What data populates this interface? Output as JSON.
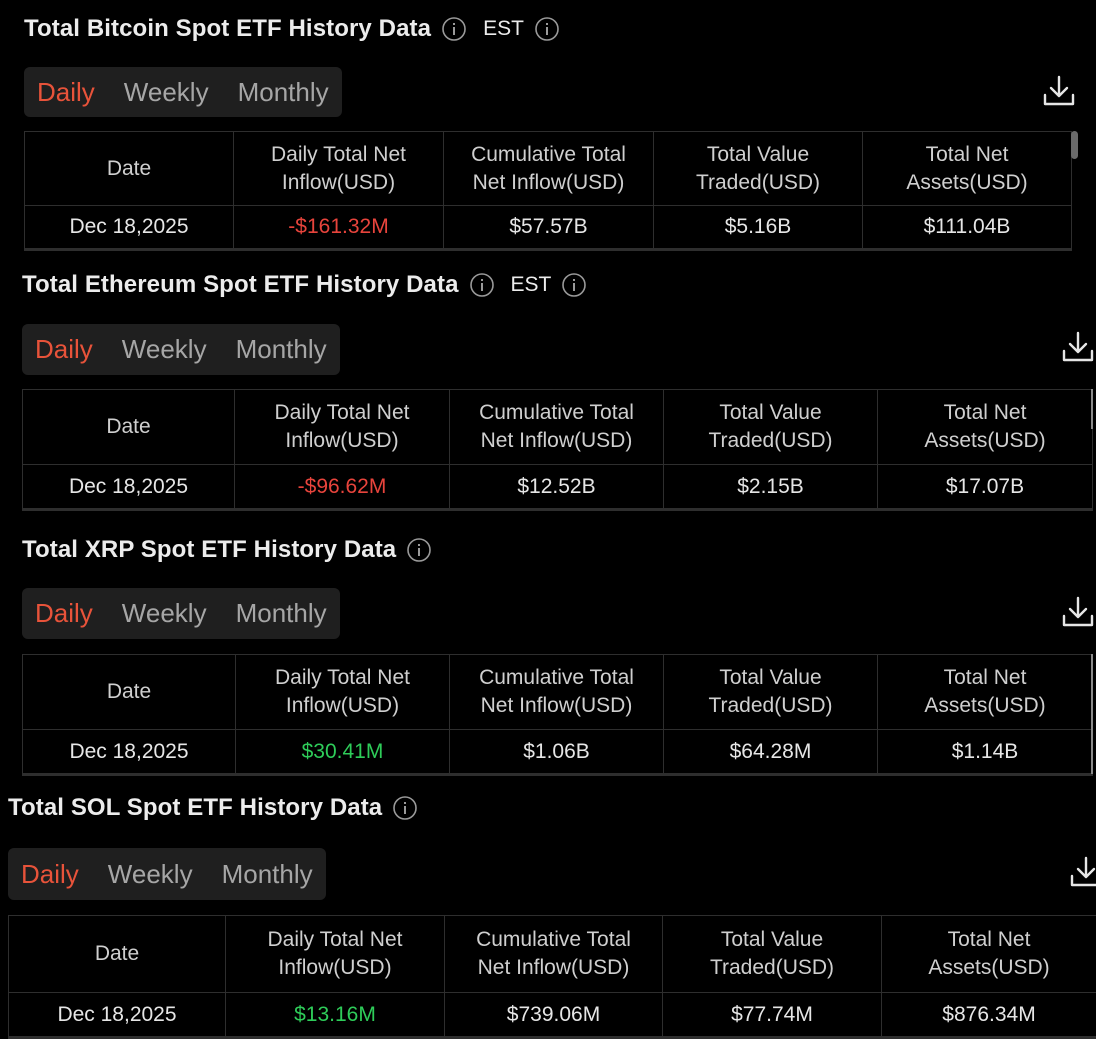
{
  "tabs": [
    "Daily",
    "Weekly",
    "Monthly"
  ],
  "columns": [
    [
      "Date"
    ],
    [
      "Daily Total Net",
      "Inflow(USD)"
    ],
    [
      "Cumulative Total",
      "Net Inflow(USD)"
    ],
    [
      "Total Value",
      "Traded(USD)"
    ],
    [
      "Total Net",
      "Assets(USD)"
    ]
  ],
  "colors": {
    "accent": "#e8533a",
    "negative": "#e8443c",
    "positive": "#2ecc59"
  },
  "sections": [
    {
      "title": "Total Bitcoin Spot ETF History Data",
      "timezone": "EST",
      "row": {
        "date": "Dec 18,2025",
        "daily_net_inflow": "-$161.32M",
        "cumulative_net_inflow": "$57.57B",
        "total_value_traded": "$5.16B",
        "total_net_assets": "$111.04B"
      },
      "inflow_sign": "negative"
    },
    {
      "title": "Total Ethereum Spot ETF History Data",
      "timezone": "EST",
      "row": {
        "date": "Dec 18,2025",
        "daily_net_inflow": "-$96.62M",
        "cumulative_net_inflow": "$12.52B",
        "total_value_traded": "$2.15B",
        "total_net_assets": "$17.07B"
      },
      "inflow_sign": "negative"
    },
    {
      "title": "Total XRP Spot ETF History Data",
      "row": {
        "date": "Dec 18,2025",
        "daily_net_inflow": "$30.41M",
        "cumulative_net_inflow": "$1.06B",
        "total_value_traded": "$64.28M",
        "total_net_assets": "$1.14B"
      },
      "inflow_sign": "positive"
    },
    {
      "title": "Total SOL Spot ETF History Data",
      "row": {
        "date": "Dec 18,2025",
        "daily_net_inflow": "$13.16M",
        "cumulative_net_inflow": "$739.06M",
        "total_value_traded": "$77.74M",
        "total_net_assets": "$876.34M"
      },
      "inflow_sign": "positive"
    }
  ]
}
